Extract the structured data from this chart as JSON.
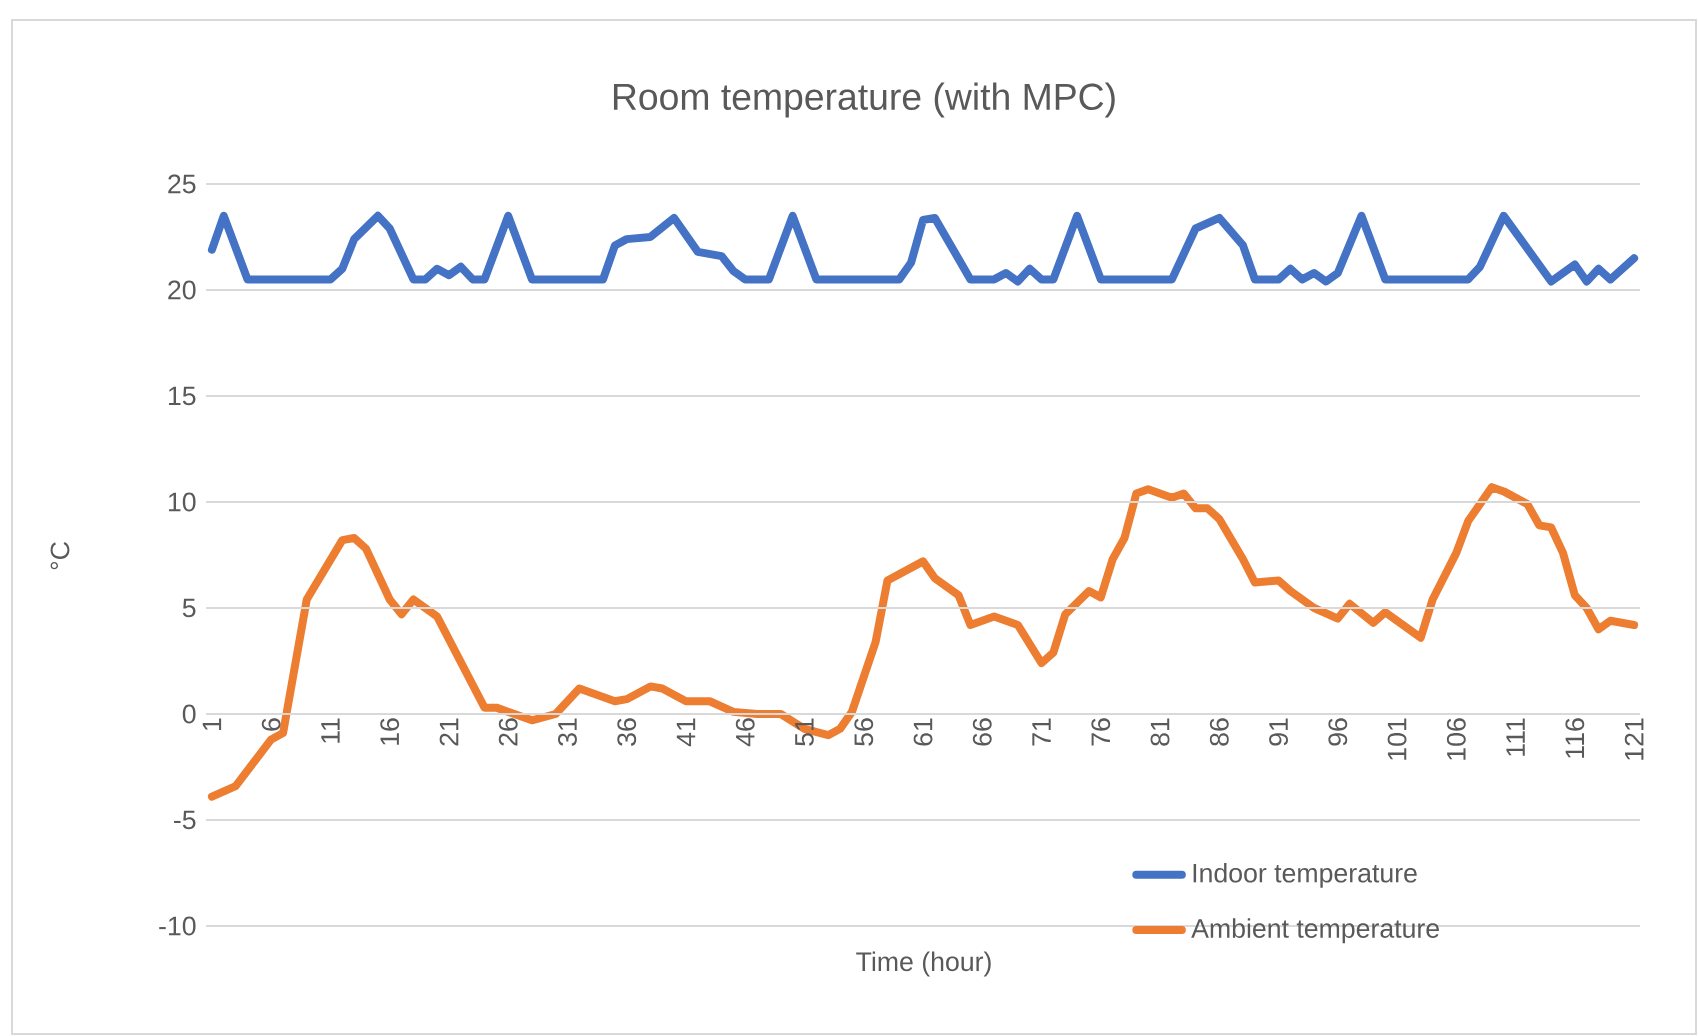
{
  "chart_data": {
    "type": "line",
    "title": "Room temperature (with MPC)",
    "xlabel": "Time (hour)",
    "ylabel": "°C",
    "xlim": [
      0.5,
      121.5
    ],
    "xticks": [
      1,
      6,
      11,
      16,
      21,
      26,
      31,
      36,
      41,
      46,
      51,
      56,
      61,
      66,
      71,
      76,
      81,
      86,
      91,
      96,
      101,
      106,
      111,
      116,
      121
    ],
    "ylim": [
      -10,
      25
    ],
    "yticks": [
      -10,
      -5,
      0,
      5,
      10,
      15,
      20,
      25
    ],
    "grid": "y",
    "legend": "bottom right",
    "marker": "none",
    "line_style": "solid",
    "series": [
      {
        "name": "Indoor temperature",
        "color": "#4472c4",
        "x": [
          1,
          2,
          4,
          11,
          12,
          13,
          15,
          16,
          18,
          19,
          20,
          21,
          22,
          23,
          24,
          26,
          28,
          34,
          35,
          36,
          38,
          40,
          42,
          44,
          45,
          46,
          48,
          50,
          52,
          59,
          60,
          61,
          62,
          65,
          67,
          68,
          69,
          70,
          71,
          72,
          74,
          76,
          82,
          84,
          86,
          88,
          89,
          91,
          92,
          93,
          94,
          95,
          96,
          98,
          100,
          107,
          108,
          110,
          114,
          116,
          117,
          118,
          119,
          121
        ],
        "values": [
          21.9,
          23.5,
          20.5,
          20.5,
          21.0,
          22.4,
          23.5,
          22.9,
          20.5,
          20.5,
          21.0,
          20.7,
          21.1,
          20.5,
          20.5,
          23.5,
          20.5,
          20.5,
          22.1,
          22.4,
          22.5,
          23.4,
          21.8,
          21.6,
          20.9,
          20.5,
          20.5,
          23.5,
          20.5,
          20.5,
          21.3,
          23.3,
          23.4,
          20.5,
          20.5,
          20.8,
          20.4,
          21.0,
          20.5,
          20.5,
          23.5,
          20.5,
          20.5,
          22.9,
          23.4,
          22.1,
          20.5,
          20.5,
          21.0,
          20.5,
          20.8,
          20.4,
          20.8,
          23.5,
          20.5,
          20.5,
          21.1,
          23.5,
          20.4,
          21.2,
          20.4,
          21.0,
          20.5,
          21.5
        ]
      },
      {
        "name": "Ambient temperature",
        "color": "#ed7d31",
        "x": [
          1,
          3,
          6,
          7,
          9,
          12,
          13,
          14,
          16,
          17,
          18,
          20,
          24,
          25,
          28,
          30,
          32,
          35,
          36,
          38,
          39,
          41,
          43,
          45,
          47,
          49,
          51,
          53,
          54,
          55,
          57,
          58,
          61,
          62,
          64,
          65,
          67,
          69,
          71,
          72,
          73,
          75,
          76,
          77,
          78,
          79,
          80,
          82,
          83,
          84,
          85,
          86,
          88,
          89,
          91,
          92,
          94,
          96,
          97,
          99,
          100,
          103,
          104,
          106,
          107,
          109,
          110,
          112,
          113,
          114,
          115,
          116,
          117,
          118,
          119,
          121
        ],
        "values": [
          -3.9,
          -3.4,
          -1.2,
          -0.9,
          5.4,
          8.2,
          8.3,
          7.8,
          5.4,
          4.7,
          5.4,
          4.6,
          0.3,
          0.3,
          -0.3,
          0.0,
          1.2,
          0.6,
          0.7,
          1.3,
          1.2,
          0.6,
          0.6,
          0.1,
          0.0,
          0.0,
          -0.7,
          -1.0,
          -0.7,
          0.1,
          3.4,
          6.3,
          7.2,
          6.4,
          5.6,
          4.2,
          4.6,
          4.2,
          2.4,
          2.9,
          4.7,
          5.8,
          5.5,
          7.3,
          8.3,
          10.4,
          10.6,
          10.2,
          10.4,
          9.7,
          9.7,
          9.2,
          7.3,
          6.2,
          6.3,
          5.8,
          5.0,
          4.5,
          5.2,
          4.3,
          4.8,
          3.6,
          5.4,
          7.6,
          9.1,
          10.7,
          10.5,
          9.9,
          8.9,
          8.8,
          7.6,
          5.6,
          5.0,
          4.0,
          4.4,
          4.2
        ]
      }
    ]
  }
}
